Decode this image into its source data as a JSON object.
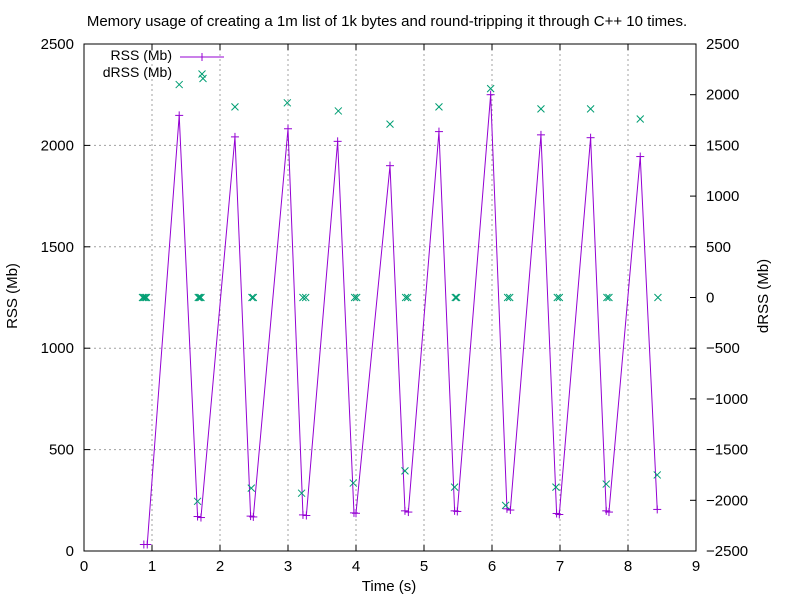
{
  "chart_data": {
    "type": "line",
    "title": "Memory usage of creating a 1m list of 1k bytes and round-tripping it through C++ 10 times.",
    "xlabel": "Time (s)",
    "ylabel": "RSS (Mb)",
    "y2label": "dRSS (Mb)",
    "xlim": [
      0,
      9
    ],
    "ylim": [
      0,
      2500
    ],
    "y2lim": [
      -2500,
      2500
    ],
    "xticks": [
      "0",
      "1",
      "2",
      "3",
      "4",
      "5",
      "6",
      "7",
      "8",
      "9"
    ],
    "yticks": [
      "0",
      "500",
      "1000",
      "1500",
      "2000",
      "2500"
    ],
    "y2ticks": [
      "-2500",
      "-2000",
      "-1500",
      "-1000",
      "-500",
      "0",
      "500",
      "1000",
      "1500",
      "2000",
      "2500"
    ],
    "grid": true,
    "legend_position": "top-left",
    "series": [
      {
        "name": "RSS (Mb)",
        "axis": "left",
        "style": "linespoints",
        "marker": "plus",
        "color": "#9400d3",
        "points": [
          [
            0.88,
            32
          ],
          [
            0.93,
            32
          ],
          [
            1.4,
            2148
          ],
          [
            1.67,
            170
          ],
          [
            1.72,
            165
          ],
          [
            2.22,
            2042
          ],
          [
            2.45,
            172
          ],
          [
            2.49,
            168
          ],
          [
            3.0,
            2082
          ],
          [
            3.22,
            178
          ],
          [
            3.27,
            175
          ],
          [
            3.73,
            2020
          ],
          [
            3.97,
            188
          ],
          [
            4.0,
            186
          ],
          [
            4.5,
            1900
          ],
          [
            4.72,
            198
          ],
          [
            4.77,
            192
          ],
          [
            5.22,
            2068
          ],
          [
            5.45,
            198
          ],
          [
            5.49,
            195
          ],
          [
            5.98,
            2250
          ],
          [
            6.22,
            208
          ],
          [
            6.27,
            202
          ],
          [
            6.72,
            2052
          ],
          [
            6.95,
            185
          ],
          [
            6.99,
            180
          ],
          [
            7.45,
            2038
          ],
          [
            7.68,
            198
          ],
          [
            7.72,
            192
          ],
          [
            8.18,
            1945
          ],
          [
            8.43,
            205
          ]
        ]
      },
      {
        "name": "dRSS (Mb)",
        "axis": "right",
        "style": "points",
        "marker": "cross",
        "color": "#009e73",
        "points": [
          [
            0.86,
            0
          ],
          [
            0.88,
            0
          ],
          [
            0.9,
            0
          ],
          [
            0.92,
            0
          ],
          [
            1.4,
            2100
          ],
          [
            1.67,
            -2010
          ],
          [
            1.68,
            0
          ],
          [
            1.7,
            0
          ],
          [
            1.72,
            0
          ],
          [
            1.75,
            2160
          ],
          [
            2.22,
            1880
          ],
          [
            2.46,
            -1880
          ],
          [
            2.47,
            0
          ],
          [
            2.49,
            0
          ],
          [
            2.99,
            1920
          ],
          [
            3.2,
            -1930
          ],
          [
            3.22,
            0
          ],
          [
            3.26,
            0
          ],
          [
            3.74,
            1840
          ],
          [
            3.96,
            -1830
          ],
          [
            3.98,
            0
          ],
          [
            4.01,
            0
          ],
          [
            4.5,
            1710
          ],
          [
            4.72,
            -1710
          ],
          [
            4.73,
            0
          ],
          [
            4.76,
            0
          ],
          [
            5.22,
            1880
          ],
          [
            5.45,
            -1870
          ],
          [
            5.46,
            0
          ],
          [
            5.48,
            0
          ],
          [
            5.98,
            2060
          ],
          [
            6.2,
            -2050
          ],
          [
            6.23,
            0
          ],
          [
            6.26,
            0
          ],
          [
            6.72,
            1860
          ],
          [
            6.94,
            -1870
          ],
          [
            6.96,
            0
          ],
          [
            6.99,
            0
          ],
          [
            7.45,
            1860
          ],
          [
            7.68,
            -1840
          ],
          [
            7.69,
            0
          ],
          [
            7.72,
            0
          ],
          [
            8.18,
            1760
          ],
          [
            8.43,
            -1750
          ],
          [
            8.44,
            0
          ]
        ]
      }
    ]
  }
}
